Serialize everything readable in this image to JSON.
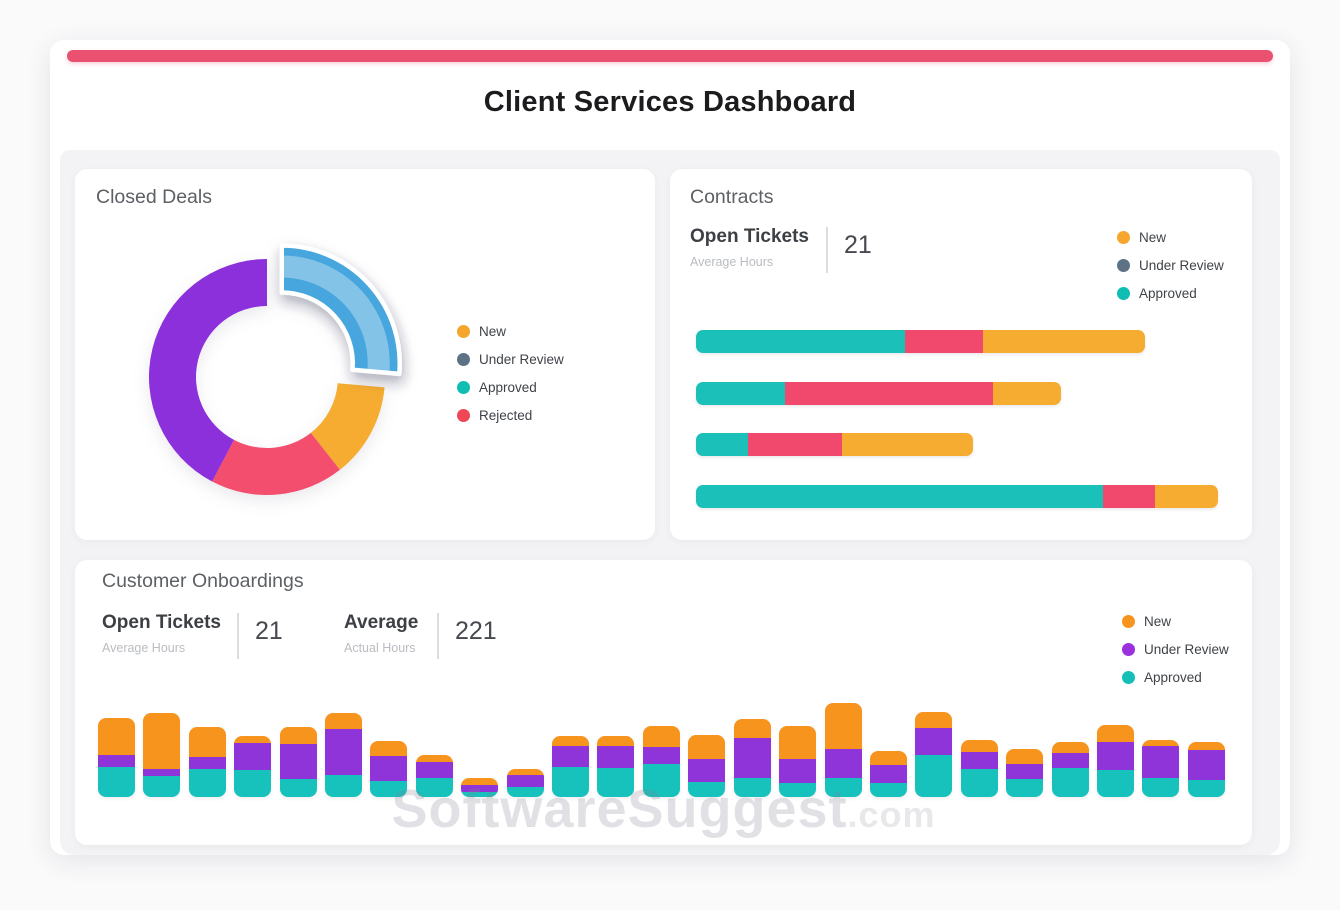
{
  "title": "Client Services Dashboard",
  "watermark": {
    "main": "SoftwareSuggest",
    "suffix": ".com"
  },
  "accent_color": "#EA5070",
  "closed_deals": {
    "title": "Closed Deals",
    "legend": [
      {
        "label": "New",
        "color": "#F5A62C"
      },
      {
        "label": "Under Review",
        "color": "#5E7286"
      },
      {
        "label": "Approved",
        "color": "#0FBDB3"
      },
      {
        "label": "Rejected",
        "color": "#EF4756"
      }
    ]
  },
  "contracts": {
    "title": "Contracts",
    "stat": {
      "label": "Open Tickets",
      "sublabel": "Average Hours",
      "value": "21"
    },
    "legend": [
      {
        "label": "New",
        "color": "#F5A62C"
      },
      {
        "label": "Under Review",
        "color": "#5E7286"
      },
      {
        "label": "Approved",
        "color": "#0FBDB3"
      }
    ]
  },
  "onboardings": {
    "title": "Customer Onboardings",
    "stats": [
      {
        "label": "Open Tickets",
        "sublabel": "Average Hours",
        "value": "21"
      },
      {
        "label": "Average",
        "sublabel": "Actual Hours",
        "value": "221"
      }
    ],
    "legend": [
      {
        "label": "New",
        "color": "#F7941E"
      },
      {
        "label": "Under Review",
        "color": "#9B30DF"
      },
      {
        "label": "Approved",
        "color": "#14BFB8"
      }
    ]
  },
  "chart_data": [
    {
      "type": "pie",
      "style": "donut",
      "title": "Closed Deals",
      "legend": [
        "New",
        "Under Review",
        "Approved",
        "Rejected"
      ],
      "legend_position": "right",
      "segments": [
        {
          "name": "blue-exploded",
          "value": 26.4,
          "color": "#47A6DD",
          "exploded": true
        },
        {
          "name": "orange",
          "value": 13.0,
          "color": "#F5AC30",
          "exploded": false
        },
        {
          "name": "pink",
          "value": 18.3,
          "color": "#F34E6E",
          "exploded": false
        },
        {
          "name": "purple",
          "value": 42.3,
          "color": "#8C30DB",
          "exploded": false
        }
      ]
    },
    {
      "type": "bar",
      "title": "Contracts",
      "orientation": "horizontal",
      "stacked": true,
      "grid": false,
      "x_max": 100,
      "segment_names": [
        "approved",
        "rejected",
        "new"
      ],
      "segment_colors": [
        "#1BC0B8",
        "#F1496D",
        "#F5AC30"
      ],
      "rows": [
        [
          40,
          15,
          31
        ],
        [
          17,
          40,
          13
        ],
        [
          10,
          18,
          25
        ],
        [
          78,
          10,
          12
        ]
      ]
    },
    {
      "type": "bar",
      "title": "Customer Onboardings",
      "orientation": "vertical",
      "stacked": true,
      "grid": false,
      "y_max": 100,
      "segment_names": [
        "approved",
        "under_review",
        "new"
      ],
      "segment_colors": [
        "#17C2BC",
        "#8E34D9",
        "#F7941E"
      ],
      "bars": [
        [
          30,
          12,
          37
        ],
        [
          21,
          7,
          56
        ],
        [
          28,
          12,
          30
        ],
        [
          27,
          27,
          7
        ],
        [
          18,
          35,
          17
        ],
        [
          22,
          46,
          16
        ],
        [
          16,
          25,
          15
        ],
        [
          19,
          16,
          7
        ],
        [
          5,
          7,
          7
        ],
        [
          10,
          12,
          6
        ],
        [
          30,
          21,
          10
        ],
        [
          29,
          22,
          10
        ],
        [
          33,
          17,
          21
        ],
        [
          15,
          23,
          24
        ],
        [
          19,
          40,
          19
        ],
        [
          14,
          24,
          33
        ],
        [
          19,
          29,
          46
        ],
        [
          14,
          18,
          14
        ],
        [
          42,
          27,
          16
        ],
        [
          28,
          17,
          12
        ],
        [
          18,
          15,
          15
        ],
        [
          29,
          15,
          11
        ],
        [
          27,
          28,
          17
        ],
        [
          19,
          32,
          6
        ],
        [
          17,
          30,
          8
        ]
      ]
    }
  ]
}
